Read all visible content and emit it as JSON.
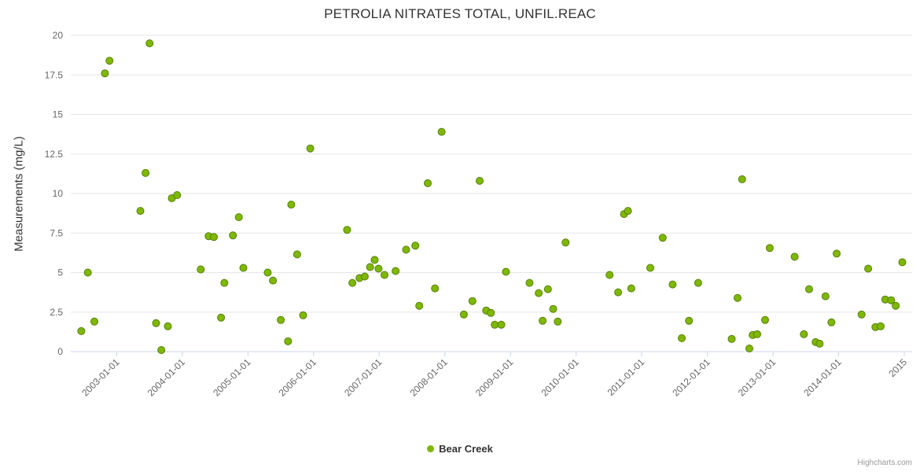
{
  "title": "PETROLIA NITRATES TOTAL, UNFIL.REAC",
  "credits_label": "Highcharts.com",
  "legend": {
    "items": [
      {
        "label": "Bear Creek",
        "color": "#7fb800"
      }
    ]
  },
  "chart_data": {
    "type": "scatter",
    "title": "PETROLIA NITRATES TOTAL, UNFIL.REAC",
    "xlabel": "",
    "ylabel": "Measurements (mg/L)",
    "ylim": [
      0,
      20
    ],
    "yticks": [
      0,
      2.5,
      5,
      7.5,
      10,
      12.5,
      15,
      17.5,
      20
    ],
    "xlim": [
      2002.3,
      2015.12
    ],
    "xticks": [
      {
        "value": 2003,
        "label": "2003-01-01"
      },
      {
        "value": 2004,
        "label": "2004-01-01"
      },
      {
        "value": 2005,
        "label": "2005-01-01"
      },
      {
        "value": 2006,
        "label": "2006-01-01"
      },
      {
        "value": 2007,
        "label": "2007-01-01"
      },
      {
        "value": 2008,
        "label": "2008-01-01"
      },
      {
        "value": 2009,
        "label": "2009-01-01"
      },
      {
        "value": 2010,
        "label": "2010-01-01"
      },
      {
        "value": 2011,
        "label": "2011-01-01"
      },
      {
        "value": 2012,
        "label": "2012-01-01"
      },
      {
        "value": 2013,
        "label": "2013-01-01"
      },
      {
        "value": 2014,
        "label": "2014-01-01"
      },
      {
        "value": 2015,
        "label": "2015"
      }
    ],
    "grid": "horizontal",
    "grid_color": "#e6e6e6",
    "axis_line_color": "#ccd6eb",
    "label_color": "#666666",
    "legend_position": "bottom-center",
    "marker": {
      "radius": 4.5,
      "border_color": "#55800a"
    },
    "series": [
      {
        "name": "Bear Creek",
        "color": "#7fb800",
        "points": [
          [
            2002.46,
            1.3
          ],
          [
            2002.56,
            5.0
          ],
          [
            2002.66,
            1.9
          ],
          [
            2002.82,
            17.6
          ],
          [
            2002.89,
            18.4
          ],
          [
            2003.36,
            8.9
          ],
          [
            2003.44,
            11.3
          ],
          [
            2003.5,
            19.5
          ],
          [
            2003.6,
            1.8
          ],
          [
            2003.68,
            0.1
          ],
          [
            2003.78,
            1.6
          ],
          [
            2003.84,
            9.7
          ],
          [
            2003.92,
            9.9
          ],
          [
            2004.28,
            5.2
          ],
          [
            2004.4,
            7.3
          ],
          [
            2004.48,
            7.25
          ],
          [
            2004.59,
            2.15
          ],
          [
            2004.64,
            4.35
          ],
          [
            2004.77,
            7.35
          ],
          [
            2004.86,
            8.5
          ],
          [
            2004.93,
            5.3
          ],
          [
            2005.3,
            5.0
          ],
          [
            2005.38,
            4.5
          ],
          [
            2005.5,
            2.0
          ],
          [
            2005.61,
            0.65
          ],
          [
            2005.66,
            9.3
          ],
          [
            2005.75,
            6.15
          ],
          [
            2005.84,
            2.3
          ],
          [
            2005.95,
            12.85
          ],
          [
            2006.51,
            7.7
          ],
          [
            2006.59,
            4.35
          ],
          [
            2006.7,
            4.65
          ],
          [
            2006.78,
            4.75
          ],
          [
            2006.86,
            5.35
          ],
          [
            2006.93,
            5.8
          ],
          [
            2006.99,
            5.25
          ],
          [
            2007.08,
            4.85
          ],
          [
            2007.25,
            5.1
          ],
          [
            2007.41,
            6.45
          ],
          [
            2007.55,
            6.7
          ],
          [
            2007.61,
            2.9
          ],
          [
            2007.74,
            10.65
          ],
          [
            2007.85,
            4.0
          ],
          [
            2007.95,
            13.9
          ],
          [
            2008.29,
            2.35
          ],
          [
            2008.42,
            3.2
          ],
          [
            2008.53,
            10.8
          ],
          [
            2008.63,
            2.6
          ],
          [
            2008.7,
            2.45
          ],
          [
            2008.76,
            1.7
          ],
          [
            2008.86,
            1.7
          ],
          [
            2008.93,
            5.05
          ],
          [
            2009.29,
            4.35
          ],
          [
            2009.43,
            3.7
          ],
          [
            2009.49,
            1.95
          ],
          [
            2009.57,
            3.95
          ],
          [
            2009.65,
            2.7
          ],
          [
            2009.72,
            1.9
          ],
          [
            2009.84,
            6.9
          ],
          [
            2010.51,
            4.85
          ],
          [
            2010.64,
            3.75
          ],
          [
            2010.73,
            8.7
          ],
          [
            2010.79,
            8.9
          ],
          [
            2010.84,
            4.0
          ],
          [
            2011.13,
            5.3
          ],
          [
            2011.32,
            7.2
          ],
          [
            2011.47,
            4.25
          ],
          [
            2011.61,
            0.85
          ],
          [
            2011.72,
            1.95
          ],
          [
            2011.86,
            4.35
          ],
          [
            2012.37,
            0.8
          ],
          [
            2012.46,
            3.4
          ],
          [
            2012.53,
            10.9
          ],
          [
            2012.64,
            0.2
          ],
          [
            2012.69,
            1.05
          ],
          [
            2012.76,
            1.1
          ],
          [
            2012.88,
            2.0
          ],
          [
            2012.95,
            6.55
          ],
          [
            2013.33,
            6.0
          ],
          [
            2013.47,
            1.1
          ],
          [
            2013.55,
            3.95
          ],
          [
            2013.65,
            0.6
          ],
          [
            2013.71,
            0.5
          ],
          [
            2013.8,
            3.5
          ],
          [
            2013.89,
            1.85
          ],
          [
            2013.97,
            6.2
          ],
          [
            2014.35,
            2.35
          ],
          [
            2014.45,
            5.25
          ],
          [
            2014.56,
            1.55
          ],
          [
            2014.64,
            1.6
          ],
          [
            2014.71,
            3.3
          ],
          [
            2014.8,
            3.25
          ],
          [
            2014.87,
            2.9
          ],
          [
            2014.97,
            5.65
          ]
        ]
      }
    ]
  }
}
